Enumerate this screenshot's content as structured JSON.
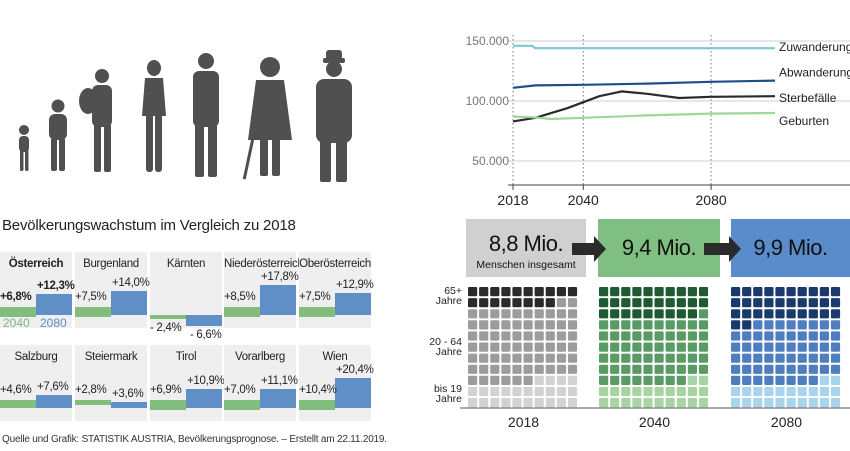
{
  "section_title": "Bevölkerungswachstum im Vergleich zu 2018",
  "legend": {
    "y2040": "2040",
    "y2080": "2080"
  },
  "colors": {
    "green": "#82bd7e",
    "blue": "#5f8fc6",
    "dark": "#2b2b2b",
    "silhouette": "#555555"
  },
  "regions": [
    {
      "name": "Österreich",
      "v2040": 6.8,
      "v2080": 12.3,
      "l2040": "+6,8%",
      "l2080": "+12,3%",
      "bold": true
    },
    {
      "name": "Burgenland",
      "v2040": 7.5,
      "v2080": 14.0,
      "l2040": "+7,5%",
      "l2080": "+14,0%"
    },
    {
      "name": "Kärnten",
      "v2040": -2.4,
      "v2080": -6.6,
      "l2040": "- 2,4%",
      "l2080": "- 6,6%"
    },
    {
      "name": "Niederösterreich",
      "v2040": 8.5,
      "v2080": 17.8,
      "l2040": "+8,5%",
      "l2080": "+17,8%"
    },
    {
      "name": "Oberösterreich",
      "v2040": 7.5,
      "v2080": 12.9,
      "l2040": "+7,5%",
      "l2080": "+12,9%"
    },
    {
      "name": "Salzburg",
      "v2040": 4.6,
      "v2080": 7.6,
      "l2040": "+4,6%",
      "l2080": "+7,6%"
    },
    {
      "name": "Steiermark",
      "v2040": 2.8,
      "v2080": 3.6,
      "l2040": "+2,8%",
      "l2080": "+3,6%"
    },
    {
      "name": "Tirol",
      "v2040": 6.9,
      "v2080": 10.9,
      "l2040": "+6,9%",
      "l2080": "+10,9%"
    },
    {
      "name": "Vorarlberg",
      "v2040": 7.0,
      "v2080": 11.1,
      "l2040": "+7,0%",
      "l2080": "+11,1%"
    },
    {
      "name": "Wien",
      "v2040": 10.4,
      "v2080": 20.4,
      "l2040": "+10,4%",
      "l2080": "+20,4%"
    }
  ],
  "chart_data": [
    {
      "type": "line",
      "title": "",
      "xlabel": "",
      "ylabel": "",
      "x_ticks": [
        "2018",
        "2040",
        "2080"
      ],
      "y_ticks": [
        "50.000",
        "100.000",
        "150.000"
      ],
      "xlim": [
        2018,
        2100
      ],
      "ylim": [
        30000,
        155000
      ],
      "series": [
        {
          "name": "Zuwanderung",
          "color": "#7ac7d6",
          "points": [
            [
              2018,
              146000
            ],
            [
              2024,
              146000
            ],
            [
              2025,
              144000
            ],
            [
              2040,
              144000
            ],
            [
              2060,
              144000
            ],
            [
              2080,
              144000
            ],
            [
              2100,
              144000
            ]
          ]
        },
        {
          "name": "Abwanderung",
          "color": "#1f4e8c",
          "points": [
            [
              2018,
              111000
            ],
            [
              2025,
              113000
            ],
            [
              2040,
              113500
            ],
            [
              2060,
              114500
            ],
            [
              2080,
              116000
            ],
            [
              2100,
              117000
            ]
          ]
        },
        {
          "name": "Sterbefälle",
          "color": "#2b2b2b",
          "points": [
            [
              2018,
              83000
            ],
            [
              2025,
              86000
            ],
            [
              2035,
              94000
            ],
            [
              2045,
              104000
            ],
            [
              2052,
              108000
            ],
            [
              2060,
              106000
            ],
            [
              2070,
              102500
            ],
            [
              2080,
              103500
            ],
            [
              2100,
              104000
            ]
          ]
        },
        {
          "name": "Geburten",
          "color": "#9fd69a",
          "points": [
            [
              2018,
              87000
            ],
            [
              2024,
              86500
            ],
            [
              2030,
              85000
            ],
            [
              2040,
              86000
            ],
            [
              2060,
              88000
            ],
            [
              2080,
              89500
            ],
            [
              2100,
              90000
            ]
          ]
        }
      ]
    },
    {
      "type": "waffle",
      "title": "",
      "age_groups": [
        {
          "label_top": "65+",
          "label_bottom": "Jahre"
        },
        {
          "label_top": "20 - 64",
          "label_bottom": "Jahre"
        },
        {
          "label_top": "bis 19",
          "label_bottom": "Jahre"
        }
      ],
      "years": [
        {
          "year": "2018",
          "total": "8,8 Mio.",
          "subtitle": "Menschen insgesamt",
          "shares": {
            "old": 16,
            "mid": 62,
            "young": 22
          },
          "colors": [
            "#2a2a2a",
            "#9c9c9c",
            "#d2d2d2"
          ],
          "box_color": "#d0d0d0"
        },
        {
          "year": "2040",
          "total": "9,4 Mio.",
          "subtitle": "",
          "shares": {
            "old": 26,
            "mid": 54,
            "young": 20
          },
          "colors": [
            "#1f5a32",
            "#5a9a64",
            "#a8d4a4"
          ],
          "box_color": "#7fbf82"
        },
        {
          "year": "2080",
          "total": "9,9 Mio.",
          "subtitle": "",
          "shares": {
            "old": 29,
            "mid": 51,
            "young": 20
          },
          "colors": [
            "#1a3a6c",
            "#4e7ebe",
            "#a9d4ec"
          ],
          "box_color": "#5a8ccb"
        }
      ]
    }
  ]
}
